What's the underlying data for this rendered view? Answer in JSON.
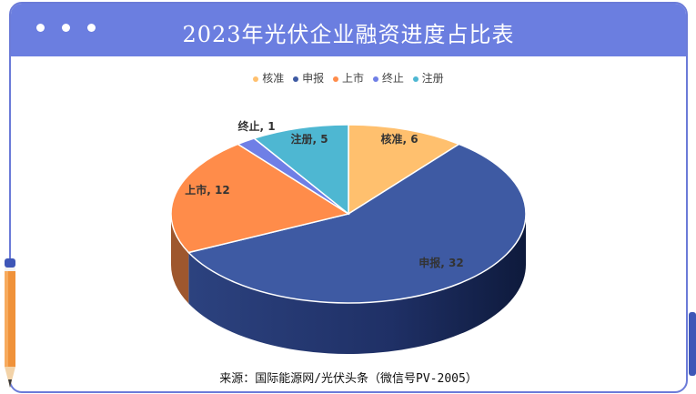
{
  "header": {
    "title": "2023年光伏企业融资进度占比表"
  },
  "colors": {
    "header_bg": "#6b7ee0",
    "border": "#6b7bd8"
  },
  "chart_data": {
    "type": "pie",
    "title": "2023年光伏企业融资进度占比表",
    "categories": [
      "核准",
      "申报",
      "上市",
      "终止",
      "注册"
    ],
    "values": [
      6,
      32,
      12,
      1,
      5
    ],
    "labels": [
      "核准, 6",
      "申报, 32",
      "上市, 12",
      "终止, 1",
      "注册, 5"
    ],
    "colors": [
      "#ffc06e",
      "#3e5aa3",
      "#ff8c4a",
      "#6f7fe6",
      "#4eb7d2"
    ],
    "legend_position": "top"
  },
  "footer": {
    "source": "来源：国际能源网/光伏头条（微信号PV-2005）"
  }
}
